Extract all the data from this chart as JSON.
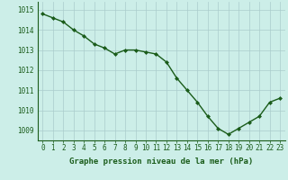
{
  "x": [
    0,
    1,
    2,
    3,
    4,
    5,
    6,
    7,
    8,
    9,
    10,
    11,
    12,
    13,
    14,
    15,
    16,
    17,
    18,
    19,
    20,
    21,
    22,
    23
  ],
  "y": [
    1014.8,
    1014.6,
    1014.4,
    1014.0,
    1013.7,
    1013.3,
    1013.1,
    1012.8,
    1013.0,
    1013.0,
    1012.9,
    1012.8,
    1012.4,
    1011.6,
    1011.0,
    1010.4,
    1009.7,
    1009.1,
    1008.8,
    1009.1,
    1009.4,
    1009.7,
    1010.4,
    1010.6
  ],
  "ylim": [
    1008.5,
    1015.4
  ],
  "yticks": [
    1009,
    1010,
    1011,
    1012,
    1013,
    1014,
    1015
  ],
  "xticks": [
    0,
    1,
    2,
    3,
    4,
    5,
    6,
    7,
    8,
    9,
    10,
    11,
    12,
    13,
    14,
    15,
    16,
    17,
    18,
    19,
    20,
    21,
    22,
    23
  ],
  "xlabel": "Graphe pression niveau de la mer (hPa)",
  "line_color": "#1a5c1a",
  "marker": "D",
  "marker_size": 2.0,
  "bg_color": "#cceee8",
  "grid_color": "#aacccc",
  "label_color": "#1a5c1a",
  "xlabel_fontsize": 6.5,
  "tick_fontsize": 5.5,
  "line_width": 1.0
}
